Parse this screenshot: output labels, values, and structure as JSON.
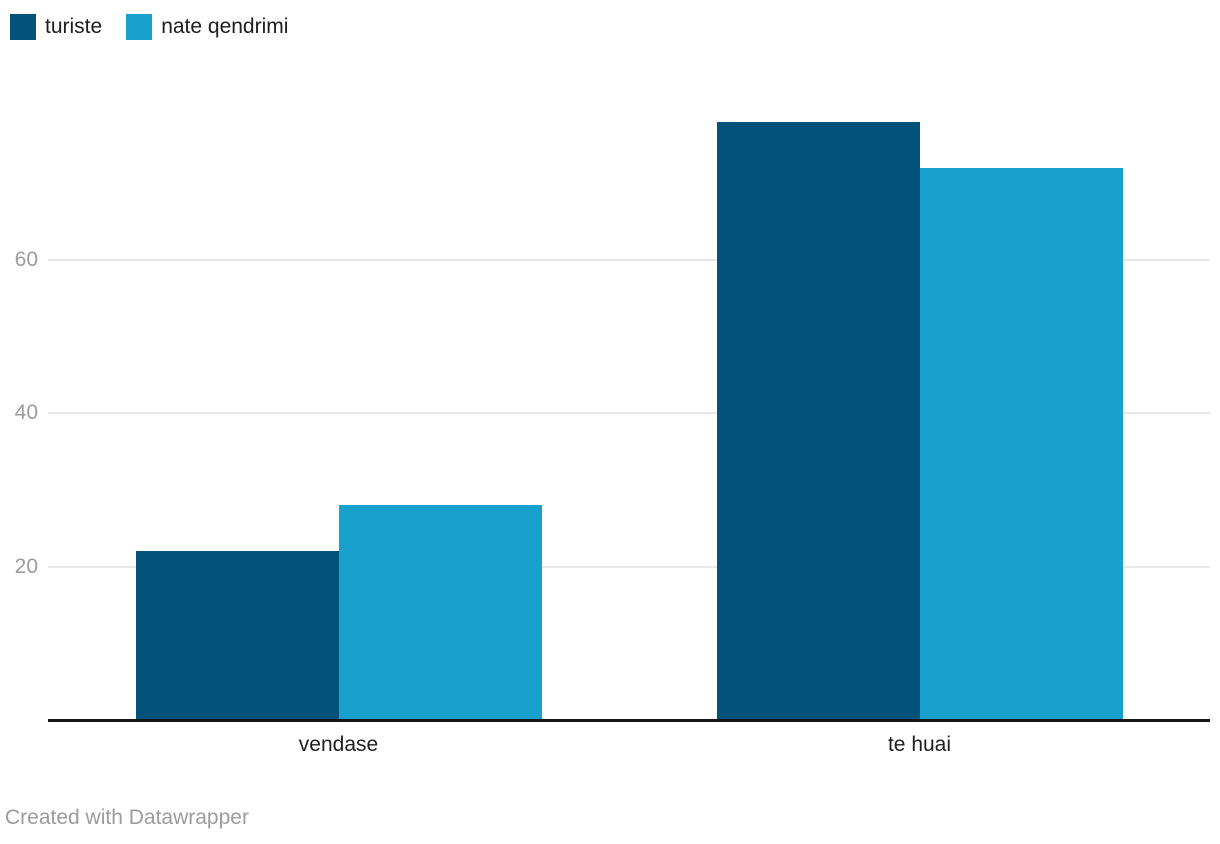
{
  "chart_data": {
    "type": "bar",
    "categories": [
      "vendase",
      "te huai"
    ],
    "series": [
      {
        "name": "turiste",
        "color": "#02527a",
        "values": [
          22,
          78
        ]
      },
      {
        "name": "nate qendrimi",
        "color": "#18a1cd",
        "values": [
          28,
          72
        ]
      }
    ],
    "title": "",
    "xlabel": "",
    "ylabel": "",
    "yticks": [
      20,
      40,
      60
    ],
    "ylim": [
      0,
      86
    ],
    "grid": true,
    "legend_position": "top-left"
  },
  "footer": {
    "credit": "Created with Datawrapper"
  },
  "colors": {
    "background": "#ffffff",
    "axis_line": "#161616",
    "gridline": "#e8e8e8",
    "tick_label": "#9c9c9c",
    "category_label": "#1f1f1f",
    "legend_text": "#1d1d1d",
    "footer_text": "#9c9c9c"
  }
}
